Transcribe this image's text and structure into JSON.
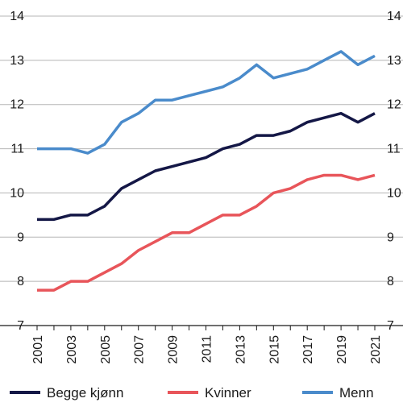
{
  "chart_data": {
    "type": "line",
    "title": "",
    "xlabel": "",
    "ylabel": "",
    "x": [
      2001,
      2002,
      2003,
      2004,
      2005,
      2006,
      2007,
      2008,
      2009,
      2010,
      2011,
      2012,
      2013,
      2014,
      2015,
      2016,
      2017,
      2018,
      2019,
      2020,
      2021
    ],
    "x_tick_labels": [
      "2001",
      "2003",
      "2005",
      "2007",
      "2009",
      "2011",
      "2013",
      "2015",
      "2017",
      "2019",
      "2021"
    ],
    "y_tick_labels": [
      "7",
      "8",
      "9",
      "10",
      "11",
      "12",
      "13",
      "14"
    ],
    "ylim": [
      7,
      14
    ],
    "grid": "horizontal",
    "legend_position": "bottom",
    "y_axis_labels": "both sides",
    "series": [
      {
        "name": "Begge kjønn",
        "color": "#141746",
        "values": [
          9.4,
          9.4,
          9.5,
          9.5,
          9.7,
          10.1,
          10.3,
          10.5,
          10.6,
          10.7,
          10.8,
          11.0,
          11.1,
          11.3,
          11.3,
          11.4,
          11.6,
          11.7,
          11.8,
          11.6,
          11.8
        ]
      },
      {
        "name": "Kvinner",
        "color": "#e8555a",
        "values": [
          7.8,
          7.8,
          8.0,
          8.0,
          8.2,
          8.4,
          8.7,
          8.9,
          9.1,
          9.1,
          9.3,
          9.5,
          9.5,
          9.7,
          10.0,
          10.1,
          10.3,
          10.4,
          10.4,
          10.3,
          10.4
        ]
      },
      {
        "name": "Menn",
        "color": "#4a8bcb",
        "values": [
          11.0,
          11.0,
          11.0,
          10.9,
          11.1,
          11.6,
          11.8,
          12.1,
          12.1,
          12.2,
          12.3,
          12.4,
          12.6,
          12.9,
          12.6,
          12.7,
          12.8,
          13.0,
          13.2,
          12.9,
          13.1
        ]
      }
    ]
  }
}
